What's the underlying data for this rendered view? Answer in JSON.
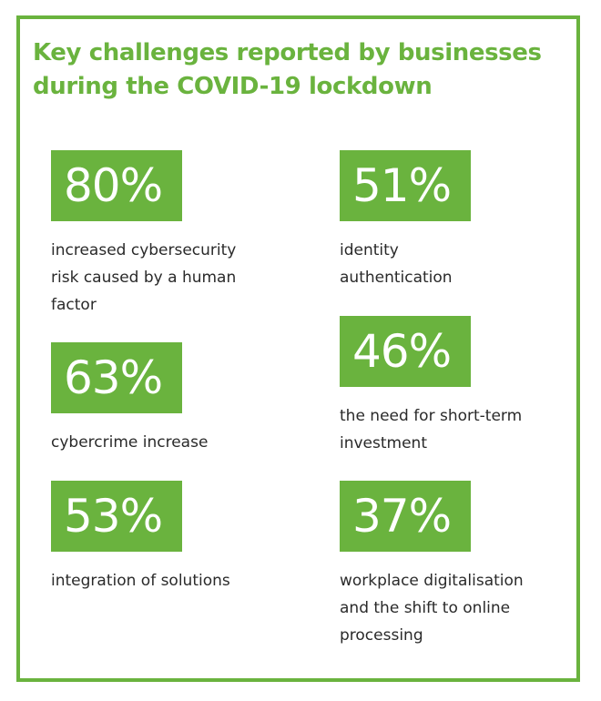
{
  "title": {
    "line1": "Key challenges reported by businesses",
    "line2": "during the COVID-19 lockdown"
  },
  "accent_color": "#6ab33e",
  "stats": [
    {
      "value": "80%",
      "lines": [
        "increased cybersecurity",
        "risk caused by a human",
        "factor"
      ]
    },
    {
      "value": "51%",
      "lines": [
        "identity",
        "authentication"
      ]
    },
    {
      "value": "63%",
      "lines": [
        "cybercrime increase"
      ]
    },
    {
      "value": "46%",
      "lines": [
        "the need for short-term",
        "investment"
      ]
    },
    {
      "value": "53%",
      "lines": [
        "integration of solutions"
      ]
    },
    {
      "value": "37%",
      "lines": [
        "workplace digitalisation",
        "and the shift to online",
        "processing"
      ]
    }
  ]
}
